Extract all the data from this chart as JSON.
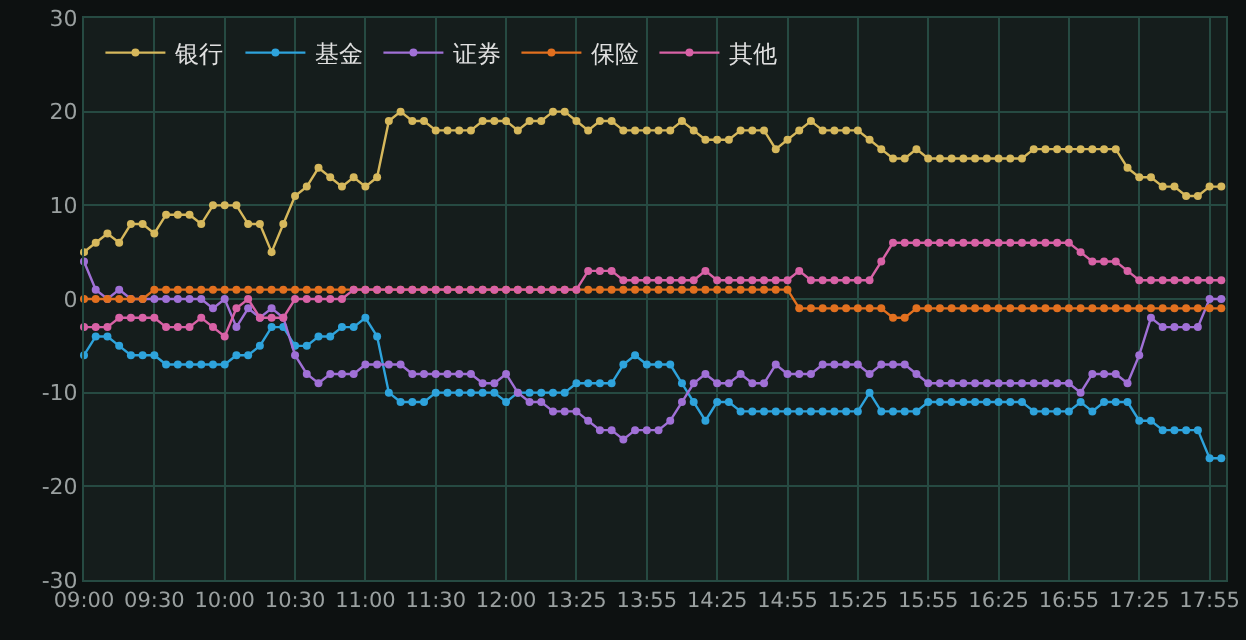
{
  "chart_data": {
    "type": "line",
    "categories": [
      "09:00",
      null,
      null,
      null,
      null,
      null,
      "09:30",
      null,
      null,
      null,
      null,
      null,
      "10:00",
      null,
      null,
      null,
      null,
      null,
      "10:30",
      null,
      null,
      null,
      null,
      null,
      "11:00",
      null,
      null,
      null,
      null,
      null,
      "11:30",
      null,
      null,
      null,
      null,
      null,
      "12:00",
      null,
      null,
      null,
      null,
      null,
      "13:25",
      null,
      null,
      null,
      null,
      null,
      "13:55",
      null,
      null,
      null,
      null,
      null,
      "14:25",
      null,
      null,
      null,
      null,
      null,
      "14:55",
      null,
      null,
      null,
      null,
      null,
      "15:25",
      null,
      null,
      null,
      null,
      null,
      "15:55",
      null,
      null,
      null,
      null,
      null,
      "16:25",
      null,
      null,
      null,
      null,
      null,
      "16:55",
      null,
      null,
      null,
      null,
      null,
      "17:25",
      null,
      null,
      null,
      null,
      null,
      "17:55",
      null
    ],
    "series": [
      {
        "name": "银行",
        "color": "#d6b85c",
        "values": [
          5,
          6,
          7,
          6,
          8,
          8,
          7,
          9,
          9,
          9,
          8,
          10,
          10,
          10,
          8,
          8,
          5,
          8,
          11,
          12,
          14,
          13,
          12,
          13,
          12,
          13,
          19,
          20,
          19,
          19,
          18,
          18,
          18,
          18,
          19,
          19,
          19,
          18,
          19,
          19,
          20,
          20,
          19,
          18,
          19,
          19,
          18,
          18,
          18,
          18,
          18,
          19,
          18,
          17,
          17,
          17,
          18,
          18,
          18,
          16,
          17,
          18,
          19,
          18,
          18,
          18,
          18,
          17,
          16,
          15,
          15,
          16,
          15,
          15,
          15,
          15,
          15,
          15,
          15,
          15,
          15,
          16,
          16,
          16,
          16,
          16,
          16,
          16,
          16,
          14,
          13,
          13,
          12,
          12,
          11,
          11,
          12,
          12
        ]
      },
      {
        "name": "基金",
        "color": "#2ea3dc",
        "values": [
          -6,
          -4,
          -4,
          -5,
          -6,
          -6,
          -6,
          -7,
          -7,
          -7,
          -7,
          -7,
          -7,
          -6,
          -6,
          -5,
          -3,
          -3,
          -5,
          -5,
          -4,
          -4,
          -3,
          -3,
          -2,
          -4,
          -10,
          -11,
          -11,
          -11,
          -10,
          -10,
          -10,
          -10,
          -10,
          -10,
          -11,
          -10,
          -10,
          -10,
          -10,
          -10,
          -9,
          -9,
          -9,
          -9,
          -7,
          -6,
          -7,
          -7,
          -7,
          -9,
          -11,
          -13,
          -11,
          -11,
          -12,
          -12,
          -12,
          -12,
          -12,
          -12,
          -12,
          -12,
          -12,
          -12,
          -12,
          -10,
          -12,
          -12,
          -12,
          -12,
          -11,
          -11,
          -11,
          -11,
          -11,
          -11,
          -11,
          -11,
          -11,
          -12,
          -12,
          -12,
          -12,
          -11,
          -12,
          -11,
          -11,
          -11,
          -13,
          -13,
          -14,
          -14,
          -14,
          -14,
          -17,
          -17
        ]
      },
      {
        "name": "证券",
        "color": "#a070d6",
        "values": [
          4,
          1,
          0,
          1,
          0,
          0,
          0,
          0,
          0,
          0,
          0,
          -1,
          0,
          -3,
          -1,
          -2,
          -1,
          -2,
          -6,
          -8,
          -9,
          -8,
          -8,
          -8,
          -7,
          -7,
          -7,
          -7,
          -8,
          -8,
          -8,
          -8,
          -8,
          -8,
          -9,
          -9,
          -8,
          -10,
          -11,
          -11,
          -12,
          -12,
          -12,
          -13,
          -14,
          -14,
          -15,
          -14,
          -14,
          -14,
          -13,
          -11,
          -9,
          -8,
          -9,
          -9,
          -8,
          -9,
          -9,
          -7,
          -8,
          -8,
          -8,
          -7,
          -7,
          -7,
          -7,
          -8,
          -7,
          -7,
          -7,
          -8,
          -9,
          -9,
          -9,
          -9,
          -9,
          -9,
          -9,
          -9,
          -9,
          -9,
          -9,
          -9,
          -9,
          -10,
          -8,
          -8,
          -8,
          -9,
          -6,
          -2,
          -3,
          -3,
          -3,
          -3,
          0,
          0
        ]
      },
      {
        "name": "保险",
        "color": "#e2701f",
        "values": [
          0,
          0,
          0,
          0,
          0,
          0,
          1,
          1,
          1,
          1,
          1,
          1,
          1,
          1,
          1,
          1,
          1,
          1,
          1,
          1,
          1,
          1,
          1,
          1,
          1,
          1,
          1,
          1,
          1,
          1,
          1,
          1,
          1,
          1,
          1,
          1,
          1,
          1,
          1,
          1,
          1,
          1,
          1,
          1,
          1,
          1,
          1,
          1,
          1,
          1,
          1,
          1,
          1,
          1,
          1,
          1,
          1,
          1,
          1,
          1,
          1,
          -1,
          -1,
          -1,
          -1,
          -1,
          -1,
          -1,
          -1,
          -2,
          -2,
          -1,
          -1,
          -1,
          -1,
          -1,
          -1,
          -1,
          -1,
          -1,
          -1,
          -1,
          -1,
          -1,
          -1,
          -1,
          -1,
          -1,
          -1,
          -1,
          -1,
          -1,
          -1,
          -1,
          -1,
          -1,
          -1,
          -1
        ]
      },
      {
        "name": "其他",
        "color": "#d862a6",
        "values": [
          -3,
          -3,
          -3,
          -2,
          -2,
          -2,
          -2,
          -3,
          -3,
          -3,
          -2,
          -3,
          -4,
          -1,
          0,
          -2,
          -2,
          -2,
          0,
          0,
          0,
          0,
          0,
          1,
          1,
          1,
          1,
          1,
          1,
          1,
          1,
          1,
          1,
          1,
          1,
          1,
          1,
          1,
          1,
          1,
          1,
          1,
          1,
          3,
          3,
          3,
          2,
          2,
          2,
          2,
          2,
          2,
          2,
          3,
          2,
          2,
          2,
          2,
          2,
          2,
          2,
          3,
          2,
          2,
          2,
          2,
          2,
          2,
          4,
          6,
          6,
          6,
          6,
          6,
          6,
          6,
          6,
          6,
          6,
          6,
          6,
          6,
          6,
          6,
          6,
          5,
          4,
          4,
          4,
          3,
          2,
          2,
          2,
          2,
          2,
          2,
          2,
          2
        ]
      }
    ],
    "ylim": [
      -30,
      30
    ],
    "yticks": [
      -30,
      -20,
      -10,
      0,
      10,
      20,
      30
    ],
    "grid": true,
    "legend": "top left",
    "marker": "circle",
    "line_style": "solid"
  }
}
